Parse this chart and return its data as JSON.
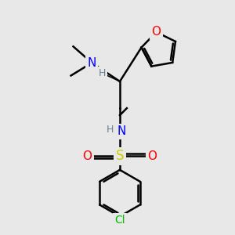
{
  "bg_color": "#e8e8e8",
  "atom_colors": {
    "C": "#000000",
    "H": "#708090",
    "N": "#0000FF",
    "O": "#FF0000",
    "S": "#cccc00",
    "Cl": "#00BB00"
  },
  "bond_color": "#000000",
  "bond_width": 1.8,
  "font_size_atom": 10,
  "font_size_small": 8,
  "figsize": [
    3.0,
    3.0
  ],
  "dpi": 100
}
